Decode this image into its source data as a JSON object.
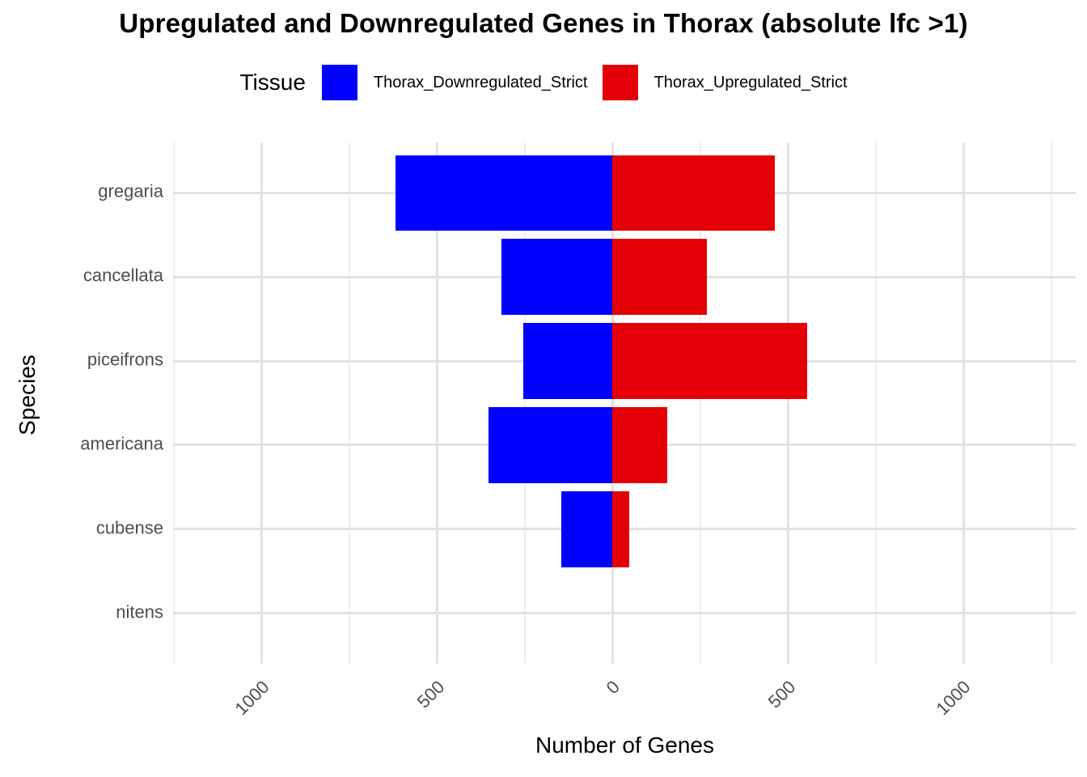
{
  "chart_data": {
    "type": "bar",
    "orientation": "horizontal-diverging",
    "title": "Upregulated and Downregulated Genes in Thorax (absolute lfc >1)",
    "xlabel": "Number of Genes",
    "ylabel": "Species",
    "categories": [
      "gregaria",
      "cancellata",
      "piceifrons",
      "americana",
      "cubense",
      "nitens"
    ],
    "series": [
      {
        "name": "Thorax_Downregulated_Strict",
        "color": "#0000ff",
        "direction": "left",
        "values": [
          618,
          317,
          254,
          353,
          147,
          0
        ]
      },
      {
        "name": "Thorax_Upregulated_Strict",
        "color": "#e40006",
        "direction": "right",
        "values": [
          463,
          269,
          555,
          157,
          47,
          0
        ]
      }
    ],
    "legend": {
      "title": "Tissue",
      "position": "top"
    },
    "x_axis": {
      "range": [
        -1250,
        1320
      ],
      "tick_values": [
        -1000,
        -500,
        0,
        500,
        1000
      ],
      "tick_labels": [
        "1000",
        "500",
        "0",
        "500",
        "1000"
      ],
      "minor_values": [
        -1250,
        -750,
        -250,
        250,
        750,
        1250
      ],
      "grid": true
    },
    "colors": {
      "background": "#ffffff",
      "grid_major": "#e2e2e2",
      "grid_minor": "#ededed",
      "tick_text": "#4d4d4d",
      "title_text": "#000000"
    }
  }
}
